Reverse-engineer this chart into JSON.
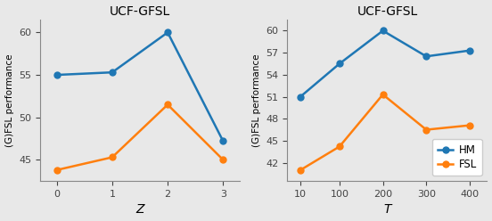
{
  "left": {
    "title": "UCF-GFSL",
    "xlabel": "Z",
    "ylabel": "(G)FSL performance",
    "x": [
      0,
      1,
      2,
      3
    ],
    "hm": [
      55.0,
      55.3,
      60.0,
      47.2
    ],
    "fsl": [
      43.8,
      45.3,
      51.5,
      45.0
    ],
    "yticks": [
      45,
      50,
      55,
      60
    ],
    "ylim": [
      42.5,
      61.5
    ],
    "xlim": [
      -0.3,
      3.3
    ]
  },
  "right": {
    "title": "UCF-GFSL",
    "xlabel": "T",
    "ylabel": "(G)FSL performance",
    "x": [
      10,
      100,
      200,
      300,
      400
    ],
    "hm": [
      51.0,
      55.5,
      60.0,
      56.5,
      57.3
    ],
    "fsl": [
      41.0,
      44.2,
      51.3,
      46.5,
      47.1
    ],
    "yticks": [
      42,
      45,
      48,
      51,
      54,
      57,
      60
    ],
    "ylim": [
      39.5,
      61.5
    ],
    "xlim": [
      -20,
      440
    ]
  },
  "hm_color": "#1f77b4",
  "fsl_color": "#ff7f0e",
  "marker": "o",
  "markersize": 5,
  "linewidth": 1.8,
  "bg_color": "#e8e8e8",
  "legend_labels": [
    "HM",
    "FSL"
  ]
}
